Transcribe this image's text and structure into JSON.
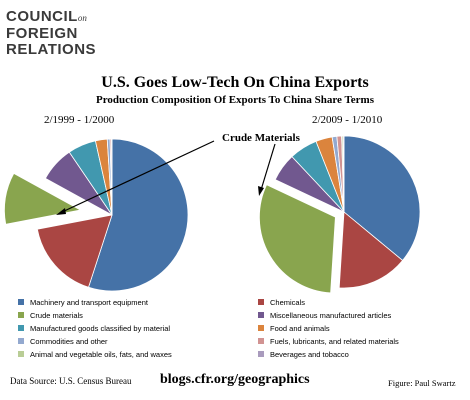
{
  "logo": {
    "line1": "COUNCIL",
    "on": "on",
    "line2": "FOREIGN",
    "line3": "RELATIONS"
  },
  "colors": {
    "primary_text": "#000000"
  },
  "chart_data": {
    "type": "pie",
    "title": "U.S. Goes Low-Tech On China Exports",
    "subtitle": "Production Composition Of Exports To China Share Terms",
    "annotation": "Crude Materials",
    "categories": [
      "Machinery and transport equipment",
      "Chemicals",
      "Crude materials",
      "Miscellaneous manufactured  articles",
      "Manufactured goods classified by material",
      "Food and animals",
      "Commodities and other",
      "Fuels, lubricants, and related materials",
      "Animal and vegetable oils, fats, and waxes",
      "Beverages and tobacco"
    ],
    "colors": [
      "#4572A7",
      "#AA4643",
      "#89A54E",
      "#71588F",
      "#4198AF",
      "#DB843D",
      "#93A9CF",
      "#D19392",
      "#B9CD96",
      "#A99BBD"
    ],
    "exploded_category": "Crude materials",
    "pies": [
      {
        "name": "2/1999 - 1/2000",
        "values": [
          55.0,
          17.0,
          11.0,
          7.5,
          6.0,
          2.5,
          0.6,
          0.3,
          0.1,
          0.0
        ]
      },
      {
        "name": "2/2009 - 1/2010",
        "values": [
          36.0,
          15.0,
          31.0,
          6.0,
          6.0,
          3.5,
          1.0,
          1.0,
          0.3,
          0.2
        ]
      }
    ],
    "legend_position": "bottom"
  },
  "footer": {
    "source": "Data Source: U.S. Census Bureau",
    "url": "blogs.cfr.org/geographics",
    "credit": "Figure: Paul Swartz"
  }
}
